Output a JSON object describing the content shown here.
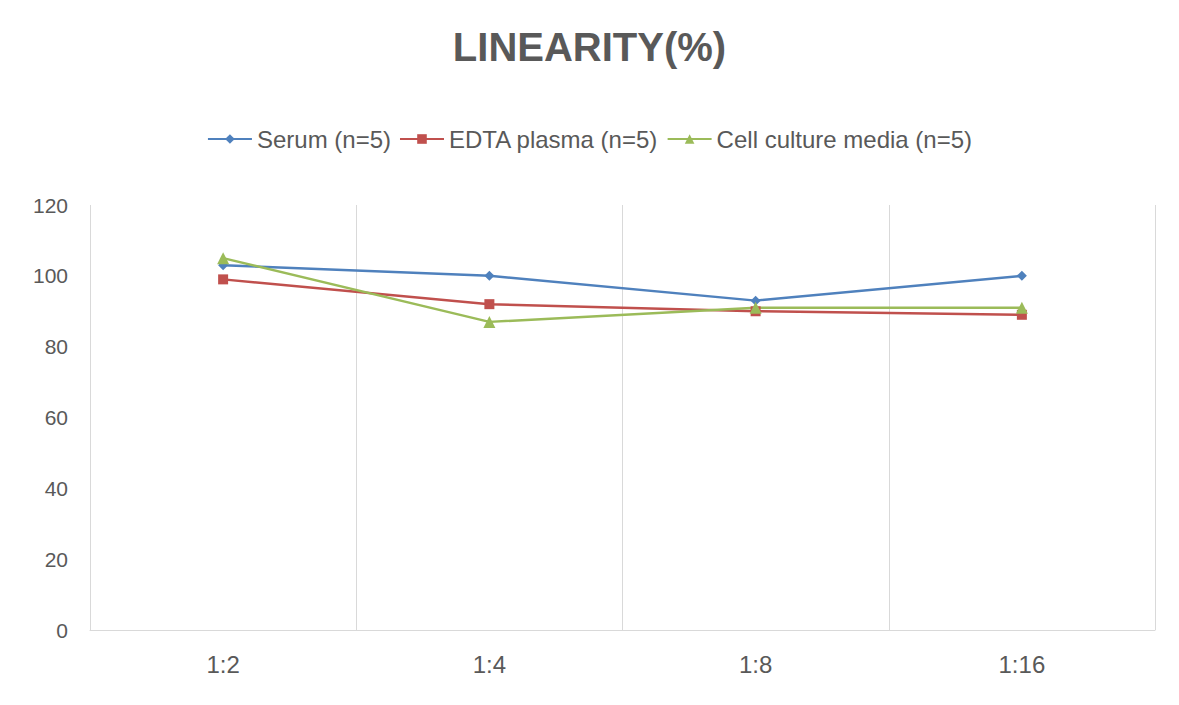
{
  "chart_data": {
    "type": "line",
    "title": "LINEARITY(%)",
    "categories": [
      "1:2",
      "1:4",
      "1:8",
      "1:16"
    ],
    "series": [
      {
        "name": "Serum (n=5)",
        "color": "#4f81bd",
        "marker": "diamond",
        "values": [
          103,
          100,
          93,
          100
        ]
      },
      {
        "name": "EDTA plasma (n=5)",
        "color": "#c0504d",
        "marker": "square",
        "values": [
          99,
          92,
          90,
          89
        ]
      },
      {
        "name": "Cell culture media (n=5)",
        "color": "#9bbb59",
        "marker": "triangle",
        "values": [
          105,
          87,
          91,
          91
        ]
      }
    ],
    "ylim": [
      0,
      120
    ],
    "yticks": [
      0,
      20,
      40,
      60,
      80,
      100,
      120
    ],
    "grid": true,
    "legend": "top"
  }
}
